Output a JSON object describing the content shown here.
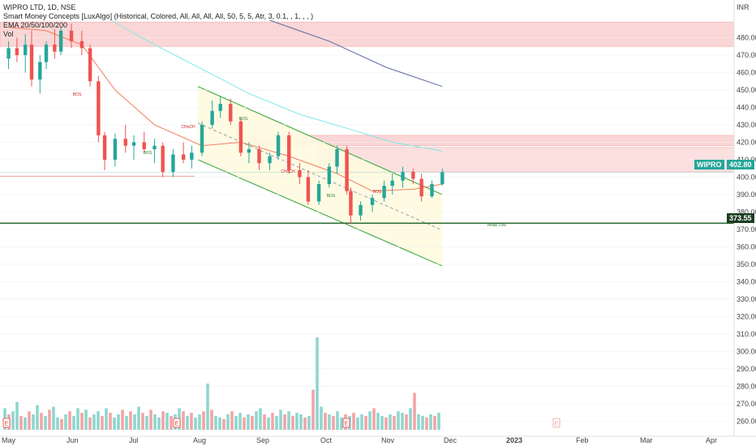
{
  "header": {
    "symbol_line": "WIPRO LTD, 1D, NSE",
    "indicator_line": "Smart Money Concepts [LuxAlgo] (Historical, Colored, All, All, All, All, 50, 5, 5, Atr, 3, 0.1, , 1, , , )",
    "ema_line": "EMA 20/50/100/200",
    "vol_line": "Vol"
  },
  "price_axis": {
    "currency": "INR",
    "ticks": [
      "480.00",
      "470.00",
      "460.00",
      "450.00",
      "440.00",
      "430.00",
      "420.00",
      "410.00",
      "400.00",
      "390.00",
      "380.00",
      "370.00",
      "360.00",
      "350.00",
      "340.00",
      "330.00",
      "320.00",
      "310.00",
      "300.00",
      "290.00",
      "280.00",
      "270.00",
      "260.00"
    ]
  },
  "time_axis": {
    "ticks": [
      "May",
      "Jun",
      "Jul",
      "Aug",
      "Sep",
      "Oct",
      "Nov",
      "Dec",
      "2023",
      "Feb",
      "Mar",
      "Apr"
    ]
  },
  "price_badges": {
    "wipro_label": "WIPRO",
    "wipro_price": "402.80",
    "level_price": "373.55"
  },
  "annotations": [
    "BOS",
    "BOS",
    "CHoCH",
    "BOS",
    "CHoCH",
    "BOS",
    "BOS",
    "Weak Low"
  ],
  "colors": {
    "up": "#26a69a",
    "down": "#ef5350",
    "ema20": "#f08060",
    "ema50": "#7ee8e8",
    "ema100": "#5b6aa8",
    "channel": "#4caf50",
    "zone": "#f9c7c7",
    "level": "#2e6b34"
  },
  "chart_data": {
    "type": "candlestick",
    "title": "WIPRO LTD, 1D, NSE",
    "xlabel": "",
    "ylabel": "INR",
    "ylim": [
      255,
      490
    ],
    "last_price": 402.8,
    "horizontal_level": 373.55,
    "supply_zones": [
      [
        475,
        489
      ],
      [
        418,
        424
      ],
      [
        403,
        417
      ]
    ],
    "channel": {
      "upper": [
        [
          "Aug 1",
          452
        ],
        [
          "Nov 28",
          390
        ]
      ],
      "lower": [
        [
          "Aug 1",
          410
        ],
        [
          "Nov 28",
          349
        ]
      ]
    },
    "candles": [
      {
        "t": "May 2",
        "o": 468,
        "h": 478,
        "l": 462,
        "c": 474
      },
      {
        "t": "May 6",
        "o": 474,
        "h": 480,
        "l": 466,
        "c": 470
      },
      {
        "t": "May 10",
        "o": 470,
        "h": 482,
        "l": 460,
        "c": 476
      },
      {
        "t": "May 13",
        "o": 476,
        "h": 484,
        "l": 452,
        "c": 456
      },
      {
        "t": "May 17",
        "o": 456,
        "h": 470,
        "l": 448,
        "c": 466
      },
      {
        "t": "May 20",
        "o": 466,
        "h": 478,
        "l": 462,
        "c": 476
      },
      {
        "t": "May 24",
        "o": 476,
        "h": 485,
        "l": 468,
        "c": 472
      },
      {
        "t": "May 27",
        "o": 472,
        "h": 486,
        "l": 470,
        "c": 484
      },
      {
        "t": "Jun 1",
        "o": 484,
        "h": 488,
        "l": 474,
        "c": 478
      },
      {
        "t": "Jun 6",
        "o": 478,
        "h": 484,
        "l": 470,
        "c": 474
      },
      {
        "t": "Jun 10",
        "o": 474,
        "h": 476,
        "l": 452,
        "c": 455
      },
      {
        "t": "Jun 14",
        "o": 455,
        "h": 458,
        "l": 420,
        "c": 424
      },
      {
        "t": "Jun 17",
        "o": 424,
        "h": 426,
        "l": 404,
        "c": 410
      },
      {
        "t": "Jun 22",
        "o": 410,
        "h": 425,
        "l": 406,
        "c": 422
      },
      {
        "t": "Jun 27",
        "o": 422,
        "h": 430,
        "l": 414,
        "c": 418
      },
      {
        "t": "Jul 1",
        "o": 418,
        "h": 424,
        "l": 410,
        "c": 420
      },
      {
        "t": "Jul 6",
        "o": 420,
        "h": 426,
        "l": 414,
        "c": 416
      },
      {
        "t": "Jul 11",
        "o": 416,
        "h": 422,
        "l": 408,
        "c": 418
      },
      {
        "t": "Jul 15",
        "o": 418,
        "h": 420,
        "l": 400,
        "c": 403
      },
      {
        "t": "Jul 20",
        "o": 403,
        "h": 416,
        "l": 400,
        "c": 413
      },
      {
        "t": "Jul 25",
        "o": 413,
        "h": 420,
        "l": 408,
        "c": 410
      },
      {
        "t": "Jul 29",
        "o": 410,
        "h": 418,
        "l": 405,
        "c": 414
      },
      {
        "t": "Aug 3",
        "o": 414,
        "h": 432,
        "l": 412,
        "c": 430
      },
      {
        "t": "Aug 8",
        "o": 430,
        "h": 444,
        "l": 428,
        "c": 438
      },
      {
        "t": "Aug 12",
        "o": 438,
        "h": 446,
        "l": 434,
        "c": 442
      },
      {
        "t": "Aug 17",
        "o": 442,
        "h": 445,
        "l": 430,
        "c": 432
      },
      {
        "t": "Aug 22",
        "o": 432,
        "h": 434,
        "l": 412,
        "c": 414
      },
      {
        "t": "Aug 26",
        "o": 414,
        "h": 420,
        "l": 408,
        "c": 416
      },
      {
        "t": "Aug 31",
        "o": 416,
        "h": 418,
        "l": 404,
        "c": 408
      },
      {
        "t": "Sep 5",
        "o": 408,
        "h": 414,
        "l": 404,
        "c": 412
      },
      {
        "t": "Sep 9",
        "o": 412,
        "h": 426,
        "l": 410,
        "c": 424
      },
      {
        "t": "Sep 14",
        "o": 424,
        "h": 426,
        "l": 402,
        "c": 404
      },
      {
        "t": "Sep 19",
        "o": 404,
        "h": 408,
        "l": 396,
        "c": 400
      },
      {
        "t": "Sep 23",
        "o": 400,
        "h": 404,
        "l": 384,
        "c": 386
      },
      {
        "t": "Sep 28",
        "o": 386,
        "h": 398,
        "l": 384,
        "c": 396
      },
      {
        "t": "Oct 3",
        "o": 396,
        "h": 408,
        "l": 394,
        "c": 406
      },
      {
        "t": "Oct 7",
        "o": 406,
        "h": 418,
        "l": 402,
        "c": 416
      },
      {
        "t": "Oct 12",
        "o": 416,
        "h": 418,
        "l": 390,
        "c": 392
      },
      {
        "t": "Oct 14",
        "o": 392,
        "h": 394,
        "l": 373,
        "c": 378
      },
      {
        "t": "Oct 19",
        "o": 378,
        "h": 386,
        "l": 375,
        "c": 384
      },
      {
        "t": "Oct 25",
        "o": 384,
        "h": 390,
        "l": 380,
        "c": 388
      },
      {
        "t": "Oct 31",
        "o": 388,
        "h": 398,
        "l": 386,
        "c": 395
      },
      {
        "t": "Nov 4",
        "o": 395,
        "h": 402,
        "l": 390,
        "c": 398
      },
      {
        "t": "Nov 9",
        "o": 398,
        "h": 406,
        "l": 394,
        "c": 403
      },
      {
        "t": "Nov 14",
        "o": 403,
        "h": 405,
        "l": 396,
        "c": 399
      },
      {
        "t": "Nov 18",
        "o": 399,
        "h": 402,
        "l": 386,
        "c": 389
      },
      {
        "t": "Nov 23",
        "o": 389,
        "h": 398,
        "l": 388,
        "c": 396
      },
      {
        "t": "Nov 28",
        "o": 396,
        "h": 405,
        "l": 395,
        "c": 402.8
      }
    ]
  }
}
